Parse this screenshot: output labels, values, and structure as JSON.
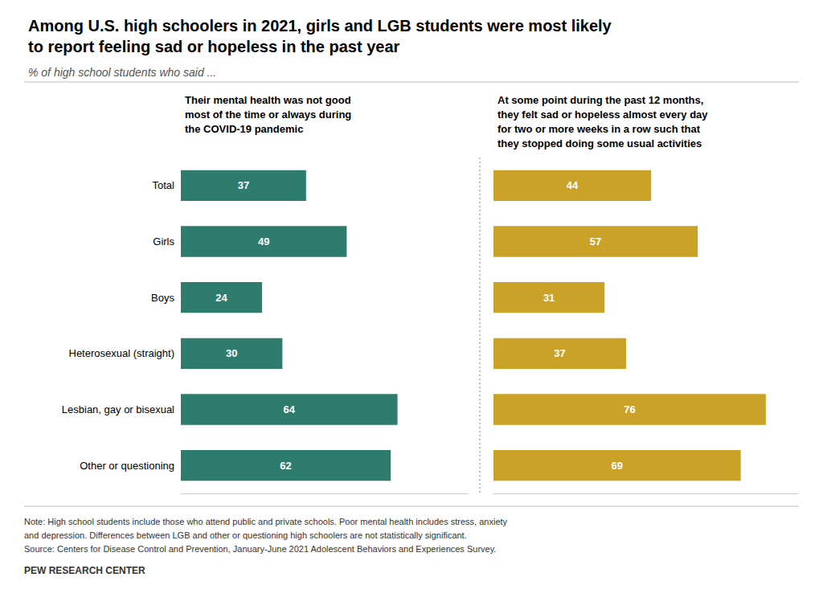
{
  "chart_data": {
    "type": "bar",
    "title": "Among U.S. high schoolers in 2021, girls and LGB students were most likely\nto report feeling sad or hopeless in the past year",
    "subtitle": "% of high school students who said ...",
    "categories": [
      "Total",
      "Girls",
      "Boys",
      "Heterosexual (straight)",
      "Lesbian, gay or bisexual",
      "Other or questioning"
    ],
    "series": [
      {
        "name": "Their mental health was not good\nmost of the time or always during\nthe COVID-19 pandemic",
        "color": "#2d7c6e",
        "values": [
          37,
          49,
          24,
          30,
          64,
          62
        ]
      },
      {
        "name": "At some point during the past 12 months,\nthey felt sad or hopeless almost every day\nfor two or more weeks in a row such that\nthey stopped doing some usual activities",
        "color": "#c9a227",
        "values": [
          44,
          57,
          31,
          37,
          76,
          69
        ]
      }
    ],
    "orientation": "horizontal",
    "xlim": [
      0,
      85
    ],
    "data_labels": true,
    "tick_labels": "y",
    "grid": false,
    "annotations": [
      "Note: High school students include those who attend public and private schools. Poor mental health includes stress, anxiety",
      "and depression. Differences between LGB and other or questioning high schoolers are not statistically significant.",
      "Source: Centers for Disease Control and Prevention, January-June 2021 Adolescent Behaviors and Experiences Survey.",
      "PEW RESEARCH CENTER"
    ]
  }
}
